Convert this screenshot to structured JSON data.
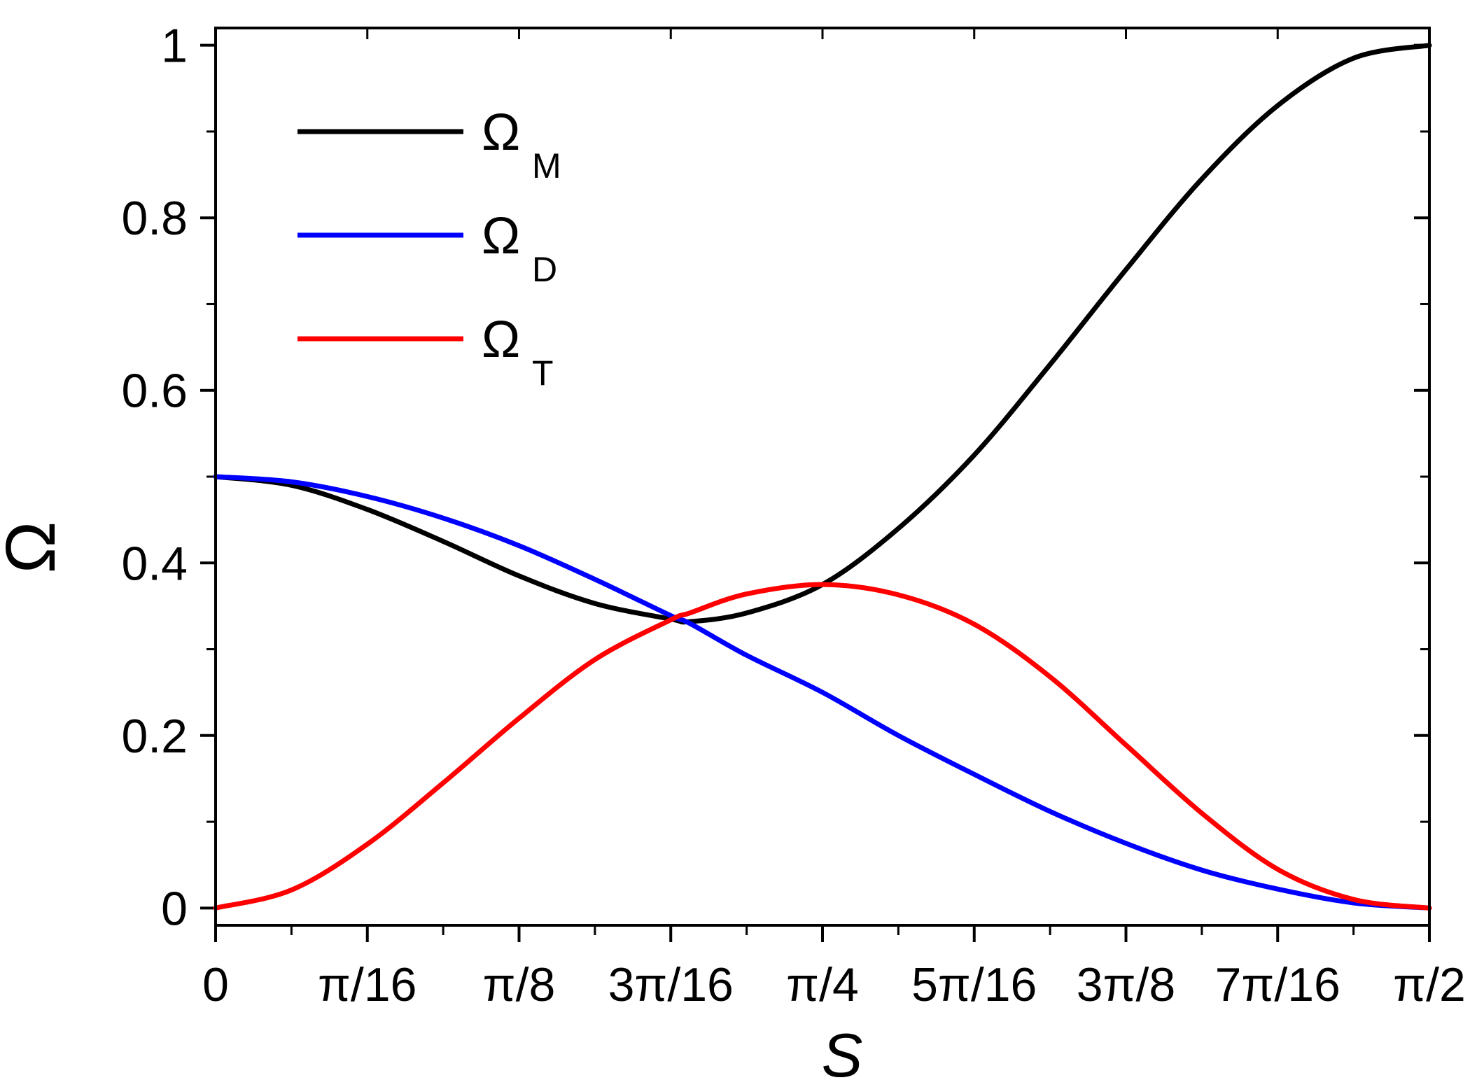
{
  "chart_data": {
    "type": "line",
    "title": "",
    "xlabel": "S",
    "ylabel": "Ω",
    "xlim": [
      0,
      1.5708
    ],
    "ylim": [
      -0.02,
      1.02
    ],
    "x_ticks": [
      {
        "value": 0,
        "label": "0"
      },
      {
        "value": 0.19635,
        "label": "π/16"
      },
      {
        "value": 0.3927,
        "label": "π/8"
      },
      {
        "value": 0.58905,
        "label": "3π/16"
      },
      {
        "value": 0.7854,
        "label": "π/4"
      },
      {
        "value": 0.98175,
        "label": "5π/16"
      },
      {
        "value": 1.1781,
        "label": "3π/8"
      },
      {
        "value": 1.37445,
        "label": "7π/16"
      },
      {
        "value": 1.5708,
        "label": "π/2"
      }
    ],
    "y_ticks": [
      {
        "value": 0,
        "label": "0"
      },
      {
        "value": 0.2,
        "label": "0.2"
      },
      {
        "value": 0.4,
        "label": "0.4"
      },
      {
        "value": 0.6,
        "label": "0.6"
      },
      {
        "value": 0.8,
        "label": "0.8"
      },
      {
        "value": 1,
        "label": "1"
      }
    ],
    "legend_position": "top-left",
    "x": [
      0,
      0.0982,
      0.1963,
      0.2945,
      0.3927,
      0.4909,
      0.589,
      0.6136,
      0.6872,
      0.7854,
      0.8836,
      0.9817,
      1.0799,
      1.1781,
      1.2763,
      1.3744,
      1.4726,
      1.5708
    ],
    "series": [
      {
        "name": "Ω",
        "subscript": "M",
        "color": "#000000",
        "values": [
          0.5,
          0.49,
          0.462,
          0.425,
          0.385,
          0.353,
          0.335,
          0.332,
          0.342,
          0.375,
          0.44,
          0.525,
          0.63,
          0.74,
          0.845,
          0.93,
          0.985,
          1.0
        ]
      },
      {
        "name": "Ω",
        "subscript": "D",
        "color": "#0000ff",
        "values": [
          0.5,
          0.494,
          0.477,
          0.452,
          0.42,
          0.381,
          0.339,
          0.33,
          0.293,
          0.25,
          0.2,
          0.155,
          0.112,
          0.075,
          0.044,
          0.022,
          0.006,
          0.0
        ]
      },
      {
        "name": "Ω",
        "subscript": "T",
        "color": "#ff0000",
        "values": [
          0.0,
          0.021,
          0.074,
          0.145,
          0.22,
          0.288,
          0.334,
          0.342,
          0.364,
          0.375,
          0.363,
          0.329,
          0.268,
          0.189,
          0.11,
          0.045,
          0.01,
          0.0
        ]
      }
    ]
  }
}
